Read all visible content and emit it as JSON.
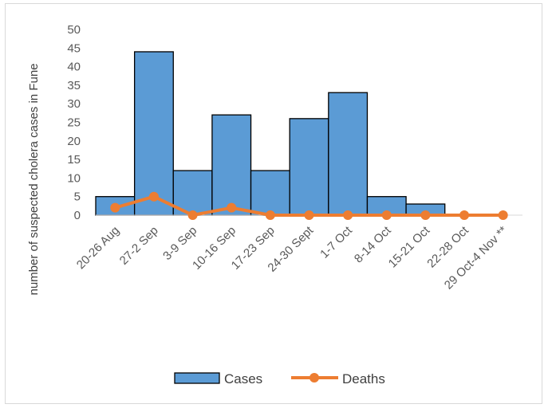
{
  "chart_data": {
    "type": "bar",
    "categories": [
      "20-26 Aug",
      "27-2 Sep",
      "3-9 Sep",
      "10-16 Sep",
      "17-23 Sep",
      "24-30 Sept",
      "1-7 Oct",
      "8-14 Oct",
      "15-21 Oct",
      "22-28 Oct",
      "29 Oct-4 Nov **"
    ],
    "series": [
      {
        "name": "Cases",
        "type": "bar",
        "color": "#5b9bd5",
        "values": [
          5,
          44,
          12,
          27,
          12,
          26,
          33,
          5,
          3,
          0,
          0
        ]
      },
      {
        "name": "Deaths",
        "type": "line",
        "color": "#ed7d31",
        "values": [
          2,
          5,
          0,
          2,
          0,
          0,
          0,
          0,
          0,
          0,
          0
        ]
      }
    ],
    "ylabel": "number of suspected cholera cases in Fune",
    "xlabel": "",
    "ylim": [
      0,
      50
    ],
    "yticks": [
      0,
      5,
      10,
      15,
      20,
      25,
      30,
      35,
      40,
      45,
      50
    ],
    "grid": false,
    "legend": "bottom"
  }
}
